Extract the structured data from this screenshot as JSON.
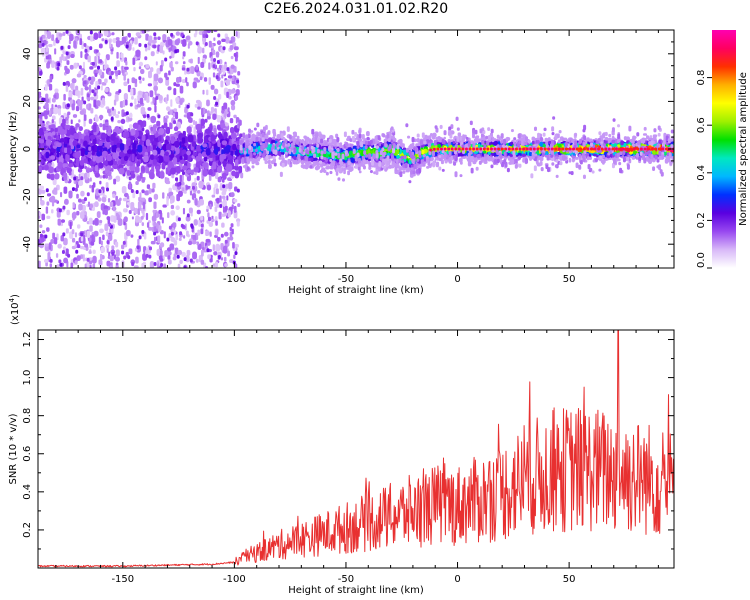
{
  "title": "C2E6.2024.031.01.02.R20",
  "chart_data": [
    {
      "type": "heatmap",
      "xlabel": "Height of straight line (km)",
      "ylabel": "Frequency (Hz)",
      "xlim": [
        -188,
        97
      ],
      "ylim": [
        -50,
        50
      ],
      "xticks": [
        -150,
        -100,
        -50,
        0,
        50
      ],
      "yticks": [
        -40,
        -20,
        0,
        20,
        40
      ],
      "colorbar": {
        "label": "Normalized spectral amplitude",
        "range": [
          0,
          1
        ],
        "ticks": [
          0.0,
          0.2,
          0.4,
          0.6,
          0.8
        ],
        "tick_labels": [
          "0.0",
          "0.2",
          "0.4",
          "0.6",
          "0.8"
        ],
        "colors": [
          "#ffffff",
          "#d8b8f8",
          "#9848f0",
          "#5a00e0",
          "#0030ff",
          "#00b8ff",
          "#00e8c0",
          "#00e000",
          "#a0f000",
          "#ffff00",
          "#ffb000",
          "#ff3000",
          "#ff0060",
          "#ff00b0"
        ]
      },
      "ridge": {
        "x": [
          -97,
          -90,
          -80,
          -70,
          -60,
          -50,
          -40,
          -35,
          -30,
          -25,
          -20,
          -15,
          -10,
          -5,
          0,
          10,
          20,
          30,
          40,
          50,
          60,
          70,
          80,
          95
        ],
        "y": [
          -1,
          0,
          1,
          -1,
          -2,
          -3,
          -1,
          -2,
          0,
          -3,
          -4,
          -1,
          0,
          0,
          0,
          0,
          0,
          0,
          0,
          0,
          0,
          0,
          0,
          0
        ]
      }
    },
    {
      "type": "line",
      "xlabel": "Height of straight line (km)",
      "ylabel": "SNR (10 * v/v)",
      "scale_label": "(x10",
      "scale_exp": "4",
      "scale_close": ")",
      "xlim": [
        -188,
        97
      ],
      "ylim": [
        0,
        1.25
      ],
      "xticks": [
        -150,
        -100,
        -50,
        0,
        50
      ],
      "yticks": [
        0.2,
        0.4,
        0.6,
        0.8,
        1.0,
        1.2
      ],
      "ytick_labels": [
        "0.2",
        "0.4",
        "0.6",
        "0.8",
        "1.0",
        "1.2"
      ],
      "color": "#e83030",
      "envelope": {
        "x": [
          -188,
          -150,
          -110,
          -100,
          -95,
          -90,
          -80,
          -70,
          -60,
          -50,
          -40,
          -30,
          -20,
          -10,
          0,
          10,
          20,
          30,
          40,
          50,
          60,
          70,
          80,
          90,
          97
        ],
        "y": [
          0.01,
          0.01,
          0.02,
          0.03,
          0.06,
          0.08,
          0.12,
          0.15,
          0.18,
          0.21,
          0.24,
          0.27,
          0.3,
          0.33,
          0.33,
          0.36,
          0.4,
          0.46,
          0.5,
          0.52,
          0.52,
          0.5,
          0.48,
          0.46,
          0.44
        ]
      },
      "peak": {
        "x": 72,
        "y": 1.25
      }
    }
  ]
}
